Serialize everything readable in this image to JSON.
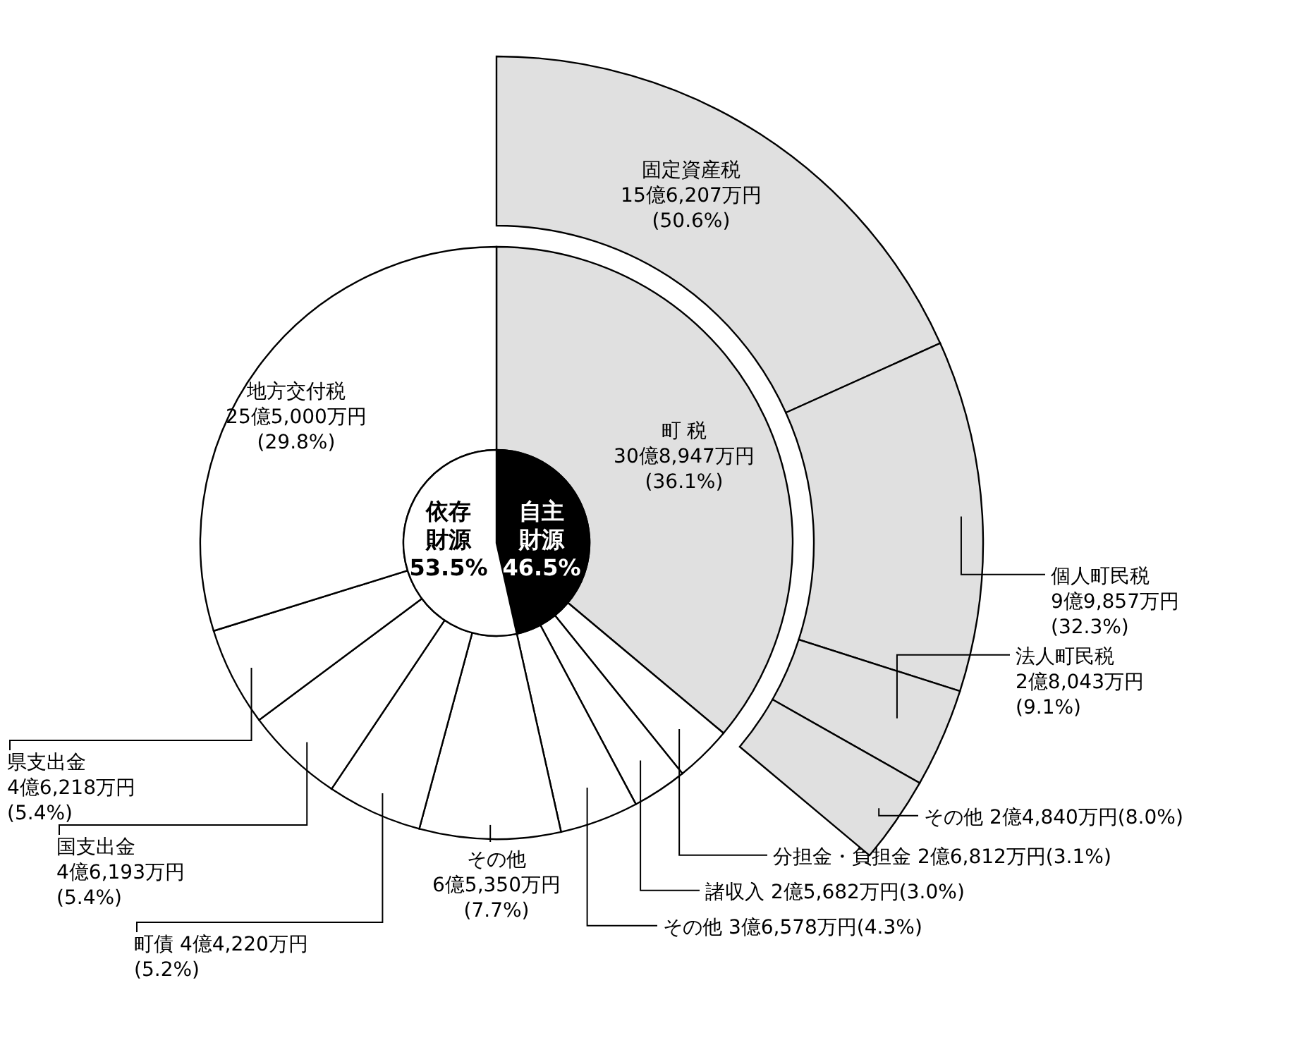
{
  "chart_data": [
    {
      "type": "donut",
      "categories": [
        "町 税",
        "分担金・負担金",
        "諸収入",
        "その他",
        "その他",
        "町債",
        "国支出金",
        "県支出金",
        "地方交付税"
      ],
      "values": [
        36.1,
        3.1,
        3.0,
        4.3,
        7.7,
        5.2,
        5.4,
        5.4,
        29.8
      ],
      "colors": [
        "#e0e0e0",
        "#ffffff",
        "#ffffff",
        "#ffffff",
        "#ffffff",
        "#ffffff",
        "#ffffff",
        "#ffffff",
        "#ffffff"
      ],
      "value_labels": [
        "30億8,947万円\n(36.1%)",
        "2億6,812万円(3.1%)",
        "2億5,682万円(3.0%)",
        "3億6,578万円(4.3%)",
        "6億5,350万円\n(7.7%)",
        "4億4,220万円\n(5.2%)",
        "4億6,193万円\n(5.4%)",
        "4億6,218万円\n(5.4%)",
        "25億5,000万円\n(29.8%)"
      ]
    },
    {
      "type": "donut",
      "categories": [
        "固定資産税",
        "個人町民税",
        "法人町民税",
        "その他"
      ],
      "values": [
        50.6,
        32.3,
        9.1,
        8.0
      ],
      "colors": [
        "#e0e0e0",
        "#e0e0e0",
        "#e0e0e0",
        "#e0e0e0"
      ],
      "value_labels": [
        "15億6,207万円\n(50.6%)",
        "9億9,857万円\n(32.3%)",
        "2億8,043万円\n(9.1%)",
        "2億4,840万円(8.0%)"
      ]
    },
    {
      "type": "pie",
      "categories": [
        "自主財源",
        "依存財源"
      ],
      "values": [
        46.5,
        53.5
      ],
      "colors": [
        "#000000",
        "#ffffff"
      ],
      "value_labels": [
        "46.5%",
        "53.5%"
      ]
    }
  ]
}
